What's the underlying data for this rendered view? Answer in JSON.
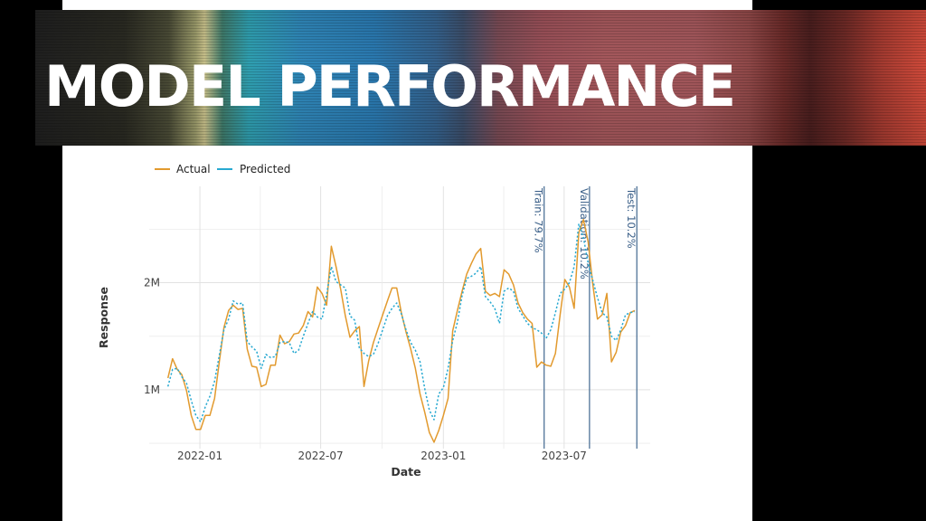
{
  "slide": {
    "title": "MODEL PERFORMANCE"
  },
  "colors": {
    "actual": "#e29a2e",
    "predicted": "#28a9d1",
    "split_line": "#4f7398",
    "grid": "#ebebeb"
  },
  "chart_data": {
    "type": "line",
    "title": "",
    "xlabel": "Date",
    "ylabel": "Response",
    "x_range": [
      "2021-10-17",
      "2023-11-07"
    ],
    "ylim": [
      450000,
      2900000
    ],
    "y_ticks": [
      {
        "value": 1000000,
        "label": "1M"
      },
      {
        "value": 2000000,
        "label": "2M"
      }
    ],
    "x_ticks": [
      {
        "date": "2022-01-01",
        "label": "2022-01"
      },
      {
        "date": "2022-07-01",
        "label": "2022-07"
      },
      {
        "date": "2023-01-01",
        "label": "2023-01"
      },
      {
        "date": "2023-07-01",
        "label": "2023-07"
      }
    ],
    "grid": true,
    "legend_position": "top-left",
    "series": [
      {
        "name": "Actual",
        "style": "solid",
        "points": [
          [
            "2021-11-14",
            1110000
          ],
          [
            "2021-11-21",
            1290000
          ],
          [
            "2021-11-28",
            1190000
          ],
          [
            "2021-12-05",
            1140000
          ],
          [
            "2021-12-12",
            990000
          ],
          [
            "2021-12-19",
            760000
          ],
          [
            "2021-12-26",
            630000
          ],
          [
            "2022-01-02",
            630000
          ],
          [
            "2022-01-09",
            760000
          ],
          [
            "2022-01-16",
            760000
          ],
          [
            "2022-01-23",
            920000
          ],
          [
            "2022-01-30",
            1260000
          ],
          [
            "2022-02-06",
            1580000
          ],
          [
            "2022-02-13",
            1740000
          ],
          [
            "2022-02-20",
            1790000
          ],
          [
            "2022-02-27",
            1750000
          ],
          [
            "2022-03-06",
            1760000
          ],
          [
            "2022-03-13",
            1380000
          ],
          [
            "2022-03-20",
            1220000
          ],
          [
            "2022-03-27",
            1210000
          ],
          [
            "2022-04-03",
            1030000
          ],
          [
            "2022-04-10",
            1050000
          ],
          [
            "2022-04-17",
            1230000
          ],
          [
            "2022-04-24",
            1230000
          ],
          [
            "2022-05-01",
            1510000
          ],
          [
            "2022-05-08",
            1430000
          ],
          [
            "2022-05-15",
            1450000
          ],
          [
            "2022-05-22",
            1520000
          ],
          [
            "2022-05-29",
            1530000
          ],
          [
            "2022-06-05",
            1600000
          ],
          [
            "2022-06-12",
            1730000
          ],
          [
            "2022-06-19",
            1680000
          ],
          [
            "2022-06-26",
            1960000
          ],
          [
            "2022-07-03",
            1900000
          ],
          [
            "2022-07-10",
            1790000
          ],
          [
            "2022-07-17",
            2340000
          ],
          [
            "2022-07-24",
            2150000
          ],
          [
            "2022-07-31",
            1940000
          ],
          [
            "2022-08-07",
            1690000
          ],
          [
            "2022-08-14",
            1490000
          ],
          [
            "2022-08-21",
            1550000
          ],
          [
            "2022-08-28",
            1590000
          ],
          [
            "2022-09-04",
            1030000
          ],
          [
            "2022-09-11",
            1270000
          ],
          [
            "2022-09-18",
            1440000
          ],
          [
            "2022-09-25",
            1570000
          ],
          [
            "2022-10-02",
            1700000
          ],
          [
            "2022-10-09",
            1830000
          ],
          [
            "2022-10-16",
            1950000
          ],
          [
            "2022-10-23",
            1950000
          ],
          [
            "2022-10-30",
            1720000
          ],
          [
            "2022-11-06",
            1540000
          ],
          [
            "2022-11-13",
            1380000
          ],
          [
            "2022-11-20",
            1200000
          ],
          [
            "2022-11-27",
            960000
          ],
          [
            "2022-12-04",
            790000
          ],
          [
            "2022-12-11",
            600000
          ],
          [
            "2022-12-18",
            510000
          ],
          [
            "2022-12-25",
            620000
          ],
          [
            "2023-01-01",
            760000
          ],
          [
            "2023-01-08",
            920000
          ],
          [
            "2023-01-15",
            1550000
          ],
          [
            "2023-01-22",
            1740000
          ],
          [
            "2023-01-29",
            1920000
          ],
          [
            "2023-02-05",
            2080000
          ],
          [
            "2023-02-12",
            2180000
          ],
          [
            "2023-02-19",
            2270000
          ],
          [
            "2023-02-26",
            2320000
          ],
          [
            "2023-03-05",
            1920000
          ],
          [
            "2023-03-12",
            1880000
          ],
          [
            "2023-03-19",
            1900000
          ],
          [
            "2023-03-26",
            1870000
          ],
          [
            "2023-04-02",
            2120000
          ],
          [
            "2023-04-09",
            2080000
          ],
          [
            "2023-04-16",
            1980000
          ],
          [
            "2023-04-23",
            1810000
          ],
          [
            "2023-04-30",
            1720000
          ],
          [
            "2023-05-07",
            1660000
          ],
          [
            "2023-05-14",
            1620000
          ],
          [
            "2023-05-21",
            1210000
          ],
          [
            "2023-05-28",
            1260000
          ],
          [
            "2023-06-04",
            1230000
          ],
          [
            "2023-06-11",
            1220000
          ],
          [
            "2023-06-18",
            1340000
          ],
          [
            "2023-06-25",
            1700000
          ],
          [
            "2023-07-02",
            2030000
          ],
          [
            "2023-07-09",
            1960000
          ],
          [
            "2023-07-16",
            1760000
          ],
          [
            "2023-07-23",
            2470000
          ],
          [
            "2023-07-30",
            2590000
          ],
          [
            "2023-08-06",
            2380000
          ],
          [
            "2023-08-13",
            1980000
          ],
          [
            "2023-08-20",
            1660000
          ],
          [
            "2023-08-27",
            1700000
          ],
          [
            "2023-09-03",
            1900000
          ],
          [
            "2023-09-10",
            1260000
          ],
          [
            "2023-09-17",
            1350000
          ],
          [
            "2023-09-24",
            1540000
          ],
          [
            "2023-10-01",
            1600000
          ],
          [
            "2023-10-08",
            1720000
          ],
          [
            "2023-10-15",
            1740000
          ]
        ]
      },
      {
        "name": "Predicted",
        "style": "dotted",
        "points": [
          [
            "2021-11-14",
            1030000
          ],
          [
            "2021-11-21",
            1190000
          ],
          [
            "2021-11-28",
            1200000
          ],
          [
            "2021-12-05",
            1120000
          ],
          [
            "2021-12-12",
            1060000
          ],
          [
            "2021-12-19",
            900000
          ],
          [
            "2021-12-26",
            760000
          ],
          [
            "2022-01-02",
            700000
          ],
          [
            "2022-01-09",
            840000
          ],
          [
            "2022-01-16",
            940000
          ],
          [
            "2022-01-23",
            1080000
          ],
          [
            "2022-01-30",
            1320000
          ],
          [
            "2022-02-06",
            1560000
          ],
          [
            "2022-02-13",
            1660000
          ],
          [
            "2022-02-20",
            1830000
          ],
          [
            "2022-02-27",
            1800000
          ],
          [
            "2022-03-06",
            1810000
          ],
          [
            "2022-03-13",
            1450000
          ],
          [
            "2022-03-20",
            1400000
          ],
          [
            "2022-03-27",
            1360000
          ],
          [
            "2022-04-03",
            1200000
          ],
          [
            "2022-04-10",
            1330000
          ],
          [
            "2022-04-17",
            1300000
          ],
          [
            "2022-04-24",
            1310000
          ],
          [
            "2022-05-01",
            1440000
          ],
          [
            "2022-05-08",
            1450000
          ],
          [
            "2022-05-15",
            1440000
          ],
          [
            "2022-05-22",
            1340000
          ],
          [
            "2022-05-29",
            1370000
          ],
          [
            "2022-06-05",
            1500000
          ],
          [
            "2022-06-12",
            1620000
          ],
          [
            "2022-06-19",
            1730000
          ],
          [
            "2022-06-26",
            1680000
          ],
          [
            "2022-07-03",
            1660000
          ],
          [
            "2022-07-10",
            1890000
          ],
          [
            "2022-07-17",
            2150000
          ],
          [
            "2022-07-24",
            2010000
          ],
          [
            "2022-07-31",
            1980000
          ],
          [
            "2022-08-07",
            1950000
          ],
          [
            "2022-08-14",
            1690000
          ],
          [
            "2022-08-21",
            1650000
          ],
          [
            "2022-08-28",
            1390000
          ],
          [
            "2022-09-04",
            1340000
          ],
          [
            "2022-09-11",
            1310000
          ],
          [
            "2022-09-18",
            1330000
          ],
          [
            "2022-09-25",
            1430000
          ],
          [
            "2022-10-02",
            1560000
          ],
          [
            "2022-10-09",
            1690000
          ],
          [
            "2022-10-16",
            1760000
          ],
          [
            "2022-10-23",
            1810000
          ],
          [
            "2022-10-30",
            1710000
          ],
          [
            "2022-11-06",
            1560000
          ],
          [
            "2022-11-13",
            1440000
          ],
          [
            "2022-11-20",
            1370000
          ],
          [
            "2022-11-27",
            1260000
          ],
          [
            "2022-12-04",
            1010000
          ],
          [
            "2022-12-11",
            810000
          ],
          [
            "2022-12-18",
            720000
          ],
          [
            "2022-12-25",
            960000
          ],
          [
            "2023-01-01",
            1020000
          ],
          [
            "2023-01-08",
            1200000
          ],
          [
            "2023-01-15",
            1460000
          ],
          [
            "2023-01-22",
            1630000
          ],
          [
            "2023-01-29",
            1880000
          ],
          [
            "2023-02-05",
            2040000
          ],
          [
            "2023-02-12",
            2060000
          ],
          [
            "2023-02-19",
            2090000
          ],
          [
            "2023-02-26",
            2150000
          ],
          [
            "2023-03-05",
            1870000
          ],
          [
            "2023-03-12",
            1820000
          ],
          [
            "2023-03-19",
            1760000
          ],
          [
            "2023-03-26",
            1620000
          ],
          [
            "2023-04-02",
            1920000
          ],
          [
            "2023-04-09",
            1950000
          ],
          [
            "2023-04-16",
            1920000
          ],
          [
            "2023-04-23",
            1760000
          ],
          [
            "2023-04-30",
            1690000
          ],
          [
            "2023-05-07",
            1620000
          ],
          [
            "2023-05-14",
            1580000
          ],
          [
            "2023-05-21",
            1560000
          ],
          [
            "2023-05-28",
            1530000
          ],
          [
            "2023-06-04",
            1480000
          ],
          [
            "2023-06-11",
            1560000
          ],
          [
            "2023-06-18",
            1720000
          ],
          [
            "2023-06-25",
            1900000
          ],
          [
            "2023-07-02",
            1940000
          ],
          [
            "2023-07-09",
            2000000
          ],
          [
            "2023-07-16",
            2150000
          ],
          [
            "2023-07-23",
            2550000
          ],
          [
            "2023-07-30",
            2420000
          ],
          [
            "2023-08-06",
            2180000
          ],
          [
            "2023-08-13",
            2020000
          ],
          [
            "2023-08-20",
            1860000
          ],
          [
            "2023-08-27",
            1720000
          ],
          [
            "2023-09-03",
            1680000
          ],
          [
            "2023-09-10",
            1500000
          ],
          [
            "2023-09-17",
            1460000
          ],
          [
            "2023-09-24",
            1560000
          ],
          [
            "2023-10-01",
            1700000
          ],
          [
            "2023-10-08",
            1720000
          ],
          [
            "2023-10-15",
            1730000
          ]
        ]
      }
    ],
    "vertical_lines": [
      {
        "date": "2023-06-01",
        "label": "Train: 79.7%"
      },
      {
        "date": "2023-08-08",
        "label": "Validation: 10.2%"
      },
      {
        "date": "2023-10-18",
        "label": "Test: 10.2%"
      }
    ]
  }
}
